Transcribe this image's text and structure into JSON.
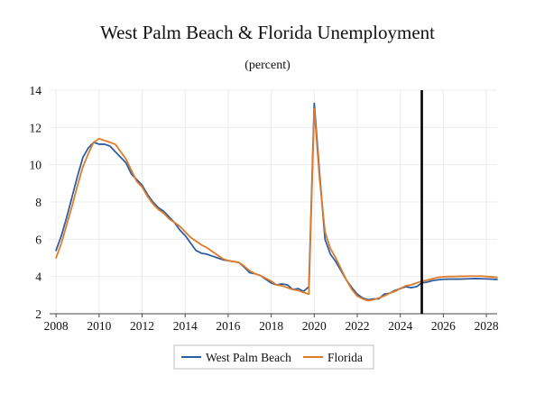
{
  "chart_data": {
    "type": "line",
    "title": "West Palm Beach & Florida Unemployment",
    "subtitle": "(percent)",
    "xlim": [
      2007.7,
      2028.5
    ],
    "ylim": [
      2,
      14
    ],
    "x_ticks": [
      2008,
      2010,
      2012,
      2014,
      2016,
      2018,
      2020,
      2022,
      2024,
      2026,
      2028
    ],
    "y_ticks": [
      2,
      4,
      6,
      8,
      10,
      12,
      14
    ],
    "grid": true,
    "forecast_marker_x": 2025.0,
    "legend_position": "bottom-center",
    "x": [
      2008.0,
      2008.25,
      2008.5,
      2008.75,
      2009.0,
      2009.25,
      2009.5,
      2009.75,
      2010.0,
      2010.25,
      2010.5,
      2010.75,
      2011.0,
      2011.25,
      2011.5,
      2011.75,
      2012.0,
      2012.25,
      2012.5,
      2012.75,
      2013.0,
      2013.25,
      2013.5,
      2013.75,
      2014.0,
      2014.25,
      2014.5,
      2014.75,
      2015.0,
      2015.25,
      2015.5,
      2015.75,
      2016.0,
      2016.25,
      2016.5,
      2016.75,
      2017.0,
      2017.25,
      2017.5,
      2017.75,
      2018.0,
      2018.25,
      2018.5,
      2018.75,
      2019.0,
      2019.25,
      2019.5,
      2019.75,
      2020.0,
      2020.25,
      2020.5,
      2020.75,
      2021.0,
      2021.25,
      2021.5,
      2021.75,
      2022.0,
      2022.25,
      2022.5,
      2022.75,
      2023.0,
      2023.25,
      2023.5,
      2023.75,
      2024.0,
      2024.25,
      2024.5,
      2024.75,
      2025.0,
      2025.25,
      2025.5,
      2025.75,
      2026.0,
      2026.25,
      2026.5,
      2026.75,
      2027.0,
      2027.25,
      2027.5,
      2027.75,
      2028.0,
      2028.25,
      2028.5
    ],
    "series": [
      {
        "name": "West Palm Beach",
        "color": "#2e5fa3",
        "values": [
          5.4,
          6.2,
          7.2,
          8.3,
          9.4,
          10.4,
          10.9,
          11.2,
          11.1,
          11.1,
          11.0,
          10.7,
          10.4,
          10.1,
          9.5,
          9.2,
          8.9,
          8.4,
          8.0,
          7.7,
          7.5,
          7.2,
          6.9,
          6.5,
          6.2,
          5.8,
          5.4,
          5.25,
          5.2,
          5.1,
          5.0,
          4.9,
          4.85,
          4.8,
          4.75,
          4.5,
          4.2,
          4.15,
          4.05,
          3.85,
          3.65,
          3.55,
          3.6,
          3.55,
          3.3,
          3.35,
          3.2,
          3.45,
          13.3,
          9.5,
          6.0,
          5.2,
          4.8,
          4.3,
          3.8,
          3.4,
          3.05,
          2.85,
          2.75,
          2.8,
          2.8,
          3.05,
          3.1,
          3.25,
          3.35,
          3.45,
          3.4,
          3.45,
          3.65,
          3.7,
          3.78,
          3.82,
          3.85,
          3.86,
          3.86,
          3.86,
          3.87,
          3.88,
          3.89,
          3.88,
          3.87,
          3.86,
          3.84
        ]
      },
      {
        "name": "Florida",
        "color": "#e07b2a",
        "values": [
          5.0,
          5.8,
          6.8,
          7.8,
          8.9,
          9.9,
          10.6,
          11.2,
          11.4,
          11.3,
          11.2,
          11.1,
          10.7,
          10.3,
          9.7,
          9.1,
          8.8,
          8.3,
          7.9,
          7.6,
          7.4,
          7.1,
          6.9,
          6.7,
          6.4,
          6.1,
          5.9,
          5.7,
          5.55,
          5.35,
          5.15,
          4.95,
          4.85,
          4.8,
          4.75,
          4.55,
          4.3,
          4.15,
          4.05,
          3.9,
          3.75,
          3.55,
          3.5,
          3.4,
          3.3,
          3.25,
          3.15,
          3.05,
          13.0,
          9.2,
          6.4,
          5.5,
          5.0,
          4.4,
          3.8,
          3.3,
          2.95,
          2.8,
          2.7,
          2.75,
          2.85,
          2.95,
          3.1,
          3.2,
          3.35,
          3.5,
          3.55,
          3.65,
          3.75,
          3.8,
          3.88,
          3.95,
          3.98,
          4.0,
          4.0,
          4.01,
          4.01,
          4.02,
          4.02,
          4.02,
          4.0,
          3.98,
          3.95
        ]
      }
    ]
  }
}
